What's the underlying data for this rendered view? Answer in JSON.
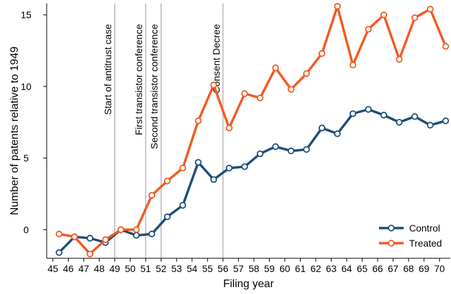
{
  "chart_data": {
    "type": "line",
    "title": "",
    "xlabel": "Filing year",
    "ylabel": "Number of patents relative to 1949",
    "xlim": [
      44.6,
      70.7
    ],
    "ylim": [
      -2,
      15.8
    ],
    "xticks": [
      45,
      46,
      47,
      48,
      49,
      50,
      51,
      52,
      53,
      54,
      55,
      56,
      57,
      58,
      59,
      60,
      61,
      62,
      63,
      64,
      65,
      66,
      67,
      68,
      69,
      70
    ],
    "yticks": [
      0,
      5,
      10,
      15
    ],
    "grid": false,
    "legend_position": "bottom-right",
    "x": [
      45.4,
      46.4,
      47.4,
      48.4,
      49.4,
      50.4,
      51.4,
      52.4,
      53.4,
      54.4,
      55.4,
      56.4,
      57.4,
      58.4,
      59.4,
      60.4,
      61.4,
      62.4,
      63.4,
      64.4,
      65.4,
      66.4,
      67.4,
      68.4,
      69.4,
      70.4
    ],
    "series": [
      {
        "name": "Control",
        "color": "#1f4e79",
        "values": [
          -1.6,
          -0.5,
          -0.6,
          -0.9,
          0.0,
          -0.4,
          -0.3,
          0.9,
          1.7,
          4.7,
          3.5,
          4.3,
          4.4,
          5.3,
          5.8,
          5.5,
          5.6,
          7.1,
          6.7,
          8.1,
          8.4,
          8.0,
          7.5,
          7.9,
          7.3,
          7.6
        ]
      },
      {
        "name": "Treated",
        "color": "#f15a22",
        "values": [
          -0.3,
          -0.5,
          -1.7,
          -0.7,
          0.0,
          0.0,
          2.4,
          3.4,
          4.3,
          7.6,
          10.1,
          7.1,
          9.5,
          9.2,
          11.3,
          9.8,
          10.9,
          12.3,
          15.6,
          11.5,
          14.0,
          15.0,
          11.9,
          14.8,
          15.4,
          12.8
        ]
      }
    ],
    "events": [
      {
        "x": 49,
        "label": "Start of antitrust case"
      },
      {
        "x": 51,
        "label": "First transistor conference"
      },
      {
        "x": 52,
        "label": "Second transistor conference"
      },
      {
        "x": 56,
        "label": "Consent Decree"
      }
    ],
    "event_line_color": "#a6a6a6"
  }
}
